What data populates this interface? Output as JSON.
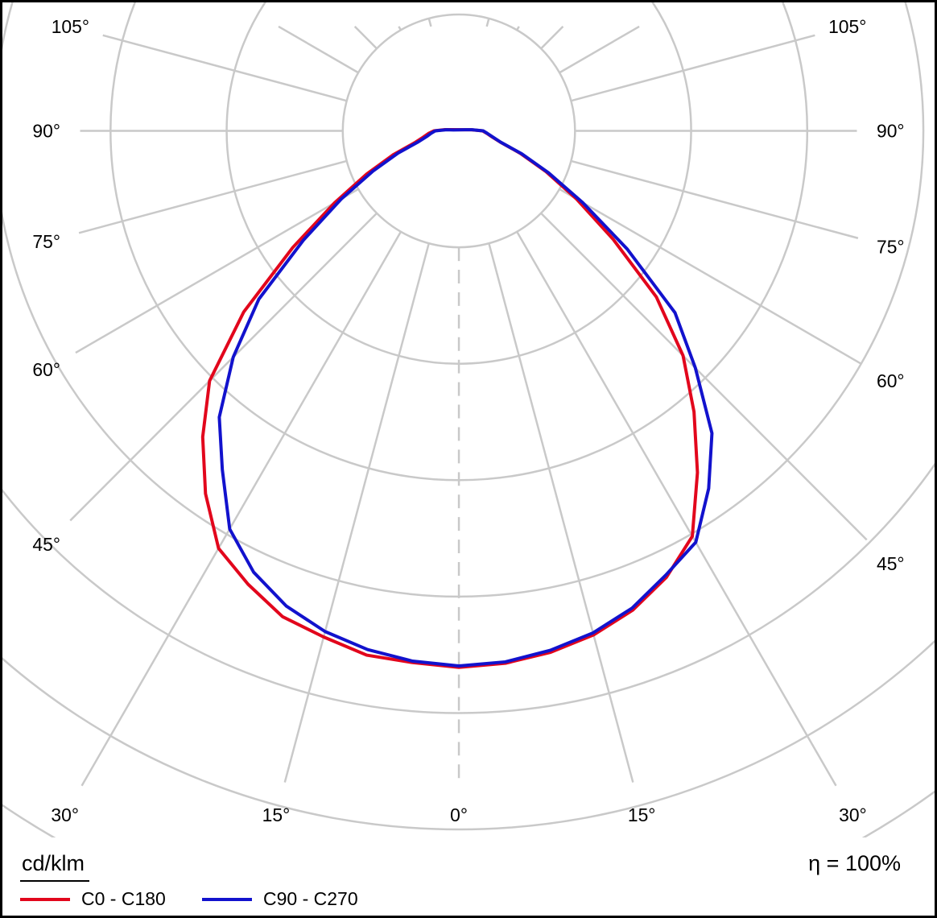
{
  "footer": {
    "unit": "cd/klm",
    "efficiency": "η = 100%"
  },
  "legend": [
    {
      "label": "C0 - C180",
      "color": "#e2061c"
    },
    {
      "label": "C90 - C270",
      "color": "#1212cd"
    }
  ],
  "chart_data": {
    "type": "polar",
    "subtype": "luminous-intensity-distribution",
    "unit": "cd/klm",
    "efficiency": "η = 100%",
    "grid_color": "#c9c9c9",
    "angle_step_deg": 15,
    "angle_labels": [
      "0°",
      "15°",
      "30°",
      "45°",
      "60°",
      "75°",
      "90°",
      "105°"
    ],
    "rings": 7,
    "rings_to_outer_reference": 6,
    "radial_scale_note": "radii are relative: 1.0 = outermost labelled grid ring (ring values not labelled in image)",
    "gamma_deg": [
      0,
      5,
      10,
      15,
      20,
      25,
      30,
      35,
      40,
      45,
      50,
      55,
      60,
      65,
      70,
      75,
      80,
      85,
      90,
      95,
      100
    ],
    "series": [
      {
        "name": "C0 - C180",
        "color": "#e2061c",
        "left": [
          0.768,
          0.764,
          0.762,
          0.75,
          0.74,
          0.716,
          0.69,
          0.634,
          0.572,
          0.506,
          0.403,
          0.291,
          0.206,
          0.146,
          0.101,
          0.066,
          0.052,
          0.044,
          0.036,
          0.02,
          0.01
        ],
        "right": [
          0.768,
          0.765,
          0.758,
          0.747,
          0.73,
          0.705,
          0.67,
          0.597,
          0.525,
          0.455,
          0.37,
          0.27,
          0.195,
          0.138,
          0.094,
          0.061,
          0.048,
          0.04,
          0.034,
          0.018,
          0.009
        ]
      },
      {
        "name": "C90 - C270",
        "color": "#1212cd",
        "left": [
          0.766,
          0.762,
          0.754,
          0.742,
          0.724,
          0.697,
          0.658,
          0.592,
          0.535,
          0.458,
          0.375,
          0.272,
          0.195,
          0.136,
          0.093,
          0.06,
          0.047,
          0.04,
          0.034,
          0.018,
          0.008
        ],
        "right": [
          0.766,
          0.763,
          0.755,
          0.744,
          0.727,
          0.702,
          0.68,
          0.625,
          0.565,
          0.48,
          0.405,
          0.295,
          0.205,
          0.142,
          0.096,
          0.062,
          0.049,
          0.041,
          0.035,
          0.019,
          0.009
        ]
      }
    ]
  }
}
